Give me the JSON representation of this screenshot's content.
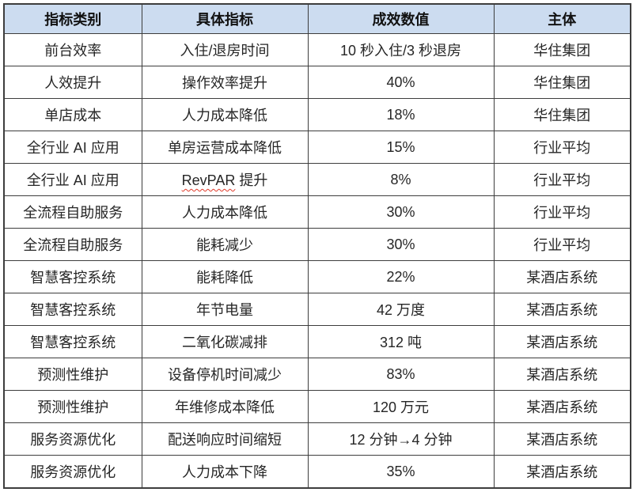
{
  "table": {
    "headers": [
      {
        "label": "指标类别"
      },
      {
        "label": "具体指标"
      },
      {
        "label": "成效数值"
      },
      {
        "label": "主体"
      }
    ],
    "rows": [
      {
        "category": "前台效率",
        "indicator": "入住/退房时间",
        "value": "10 秒入住/3 秒退房",
        "subject": "华住集团"
      },
      {
        "category": "人效提升",
        "indicator": "操作效率提升",
        "value": "40%",
        "subject": "华住集团"
      },
      {
        "category": "单店成本",
        "indicator": "人力成本降低",
        "value": "18%",
        "subject": "华住集团"
      },
      {
        "category": "全行业 AI 应用",
        "indicator": "单房运营成本降低",
        "value": "15%",
        "subject": "行业平均"
      },
      {
        "category": "全行业 AI 应用",
        "indicator": "RevPAR 提升",
        "value": "8%",
        "subject": "行业平均",
        "misspelled_word": "RevPAR"
      },
      {
        "category": "全流程自助服务",
        "indicator": "人力成本降低",
        "value": "30%",
        "subject": "行业平均"
      },
      {
        "category": "全流程自助服务",
        "indicator": "能耗减少",
        "value": "30%",
        "subject": "行业平均"
      },
      {
        "category": "智慧客控系统",
        "indicator": "能耗降低",
        "value": "22%",
        "subject": "某酒店系统"
      },
      {
        "category": "智慧客控系统",
        "indicator": "年节电量",
        "value": "42 万度",
        "subject": "某酒店系统"
      },
      {
        "category": "智慧客控系统",
        "indicator": "二氧化碳减排",
        "value": "312 吨",
        "subject": "某酒店系统"
      },
      {
        "category": "预测性维护",
        "indicator": "设备停机时间减少",
        "value": "83%",
        "subject": "某酒店系统"
      },
      {
        "category": "预测性维护",
        "indicator": "年维修成本降低",
        "value": "120 万元",
        "subject": "某酒店系统"
      },
      {
        "category": "服务资源优化",
        "indicator": "配送响应时间缩短",
        "value": "12 分钟→4 分钟",
        "subject": "某酒店系统"
      },
      {
        "category": "服务资源优化",
        "indicator": "人力成本下降",
        "value": "35%",
        "subject": "某酒店系统"
      }
    ],
    "colors": {
      "header_bg": "#ccdcf0",
      "border": "#3d3d3d",
      "body_text": "#262626",
      "spellcheck_underline": "#e03a2a"
    }
  }
}
